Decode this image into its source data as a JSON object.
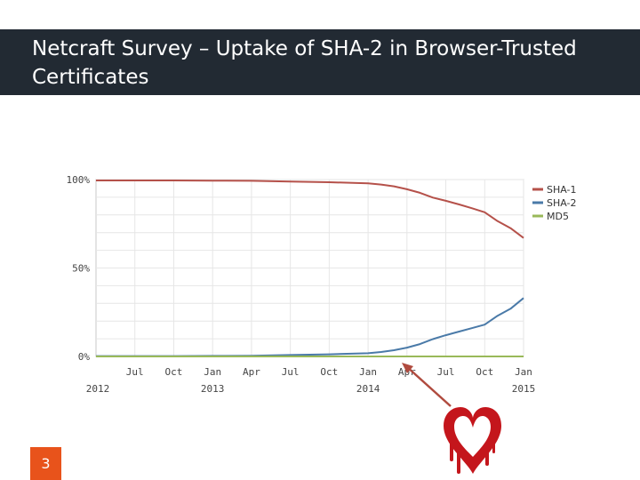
{
  "slide": {
    "title": "Netcraft Survey – Uptake of SHA-2 in Browser-Trusted Certificates",
    "number": "3"
  },
  "colors": {
    "title_bar": "#222a33",
    "slide_number_badge": "#e8531b",
    "arrow": "#b04b3f",
    "heart": "#c4161c"
  },
  "annotation": {
    "arrow_points_to": "Apr 2014",
    "icon": "heartbleed-bleeding-heart-icon"
  },
  "chart_data": {
    "type": "line",
    "x_months": [
      "2012-04",
      "2012-07",
      "2012-10",
      "2013-01",
      "2013-04",
      "2013-07",
      "2013-10",
      "2014-01",
      "2014-02",
      "2014-03",
      "2014-04",
      "2014-05",
      "2014-06",
      "2014-07",
      "2014-08",
      "2014-09",
      "2014-10",
      "2014-11",
      "2014-12",
      "2015-01"
    ],
    "series": [
      {
        "name": "SHA-1",
        "color": "#b5514a",
        "values": [
          99.5,
          99.5,
          99.5,
          99.4,
          99.3,
          98.9,
          98.5,
          97.9,
          97.2,
          96.2,
          94.5,
          92.5,
          89.8,
          88.0,
          86.0,
          83.8,
          81.5,
          76.5,
          72.5,
          67.0
        ]
      },
      {
        "name": "SHA-2",
        "color": "#4a7aa8",
        "values": [
          0.2,
          0.2,
          0.2,
          0.3,
          0.4,
          0.8,
          1.2,
          1.8,
          2.5,
          3.5,
          5.0,
          7.0,
          9.8,
          12.0,
          14.0,
          16.0,
          18.0,
          23.0,
          27.0,
          33.0
        ]
      },
      {
        "name": "MD5",
        "color": "#99b959",
        "values": [
          0,
          0,
          0,
          0,
          0,
          0,
          0,
          0,
          0,
          0,
          0,
          0,
          0,
          0,
          0,
          0,
          0,
          0,
          0,
          0
        ]
      }
    ],
    "x_ticks": [
      {
        "month": "2012-07",
        "label": "Jul",
        "year": ""
      },
      {
        "month": "2012-10",
        "label": "Oct",
        "year": ""
      },
      {
        "month": "2013-01",
        "label": "Jan",
        "year": "2013"
      },
      {
        "month": "2013-04",
        "label": "Apr",
        "year": ""
      },
      {
        "month": "2013-07",
        "label": "Jul",
        "year": ""
      },
      {
        "month": "2013-10",
        "label": "Oct",
        "year": ""
      },
      {
        "month": "2014-01",
        "label": "Jan",
        "year": "2014"
      },
      {
        "month": "2014-04",
        "label": "Apr",
        "year": ""
      },
      {
        "month": "2014-07",
        "label": "Jul",
        "year": ""
      },
      {
        "month": "2014-10",
        "label": "Oct",
        "year": ""
      },
      {
        "month": "2015-01",
        "label": "Jan",
        "year": "2015"
      }
    ],
    "start_year_label": "2012",
    "y_ticks": [
      "0%",
      "50%",
      "100%"
    ],
    "ylim": [
      0,
      100
    ],
    "xlim": [
      "2012-04",
      "2015-01"
    ],
    "grid": true,
    "legend_position": "right"
  }
}
